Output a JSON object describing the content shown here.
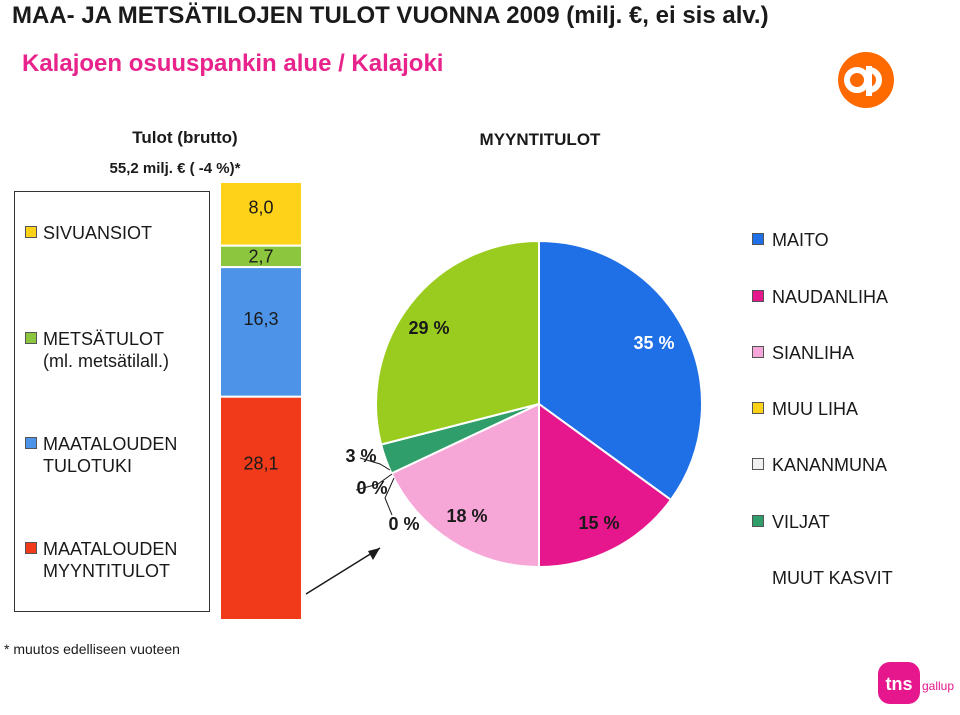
{
  "title": "MAA- JA METSÄTILOJEN TULOT VUONNA 2009 (milj. €, ei sis alv.)",
  "subtitle": "Kalajoen osuuspankin alue / Kalajoki",
  "footnote": "* muutos edelliseen vuoteen",
  "logos": {
    "op": "op",
    "tns": "tns",
    "tns_sub": "gallup"
  },
  "colors": {
    "sivuansiot": "#ffd21a",
    "metsatulot": "#8cc63f",
    "tulotuki": "#4d94e8",
    "myyntitulot": "#f03a1a",
    "maito": "#1f6fe6",
    "naudanliha": "#e6178c",
    "sianliha": "#f7a6d8",
    "muu_liha": "#ffd21a",
    "kananmuna": "#f2f2f2",
    "viljat": "#2f9e6a",
    "muut_kasvit": "#9acc1f",
    "op_orange": "#ff6a00",
    "tns_pink": "#e6178c"
  },
  "chart_data": [
    {
      "type": "bar",
      "title": "Tulot (brutto)",
      "subtitle": "55,2 milj. € ( -4 %)*",
      "stacked": true,
      "series": [
        {
          "name": "MAATALOUDEN MYYNTITULOT",
          "value": 28.1,
          "label": "28,1"
        },
        {
          "name": "MAATALOUDEN TULOTUKI",
          "value": 16.3,
          "label": "16,3"
        },
        {
          "name": "METSÄTULOT (ml. metsätilall.)",
          "value": 2.7,
          "label": "2,7"
        },
        {
          "name": "SIVUANSIOT",
          "value": 8.0,
          "label": "8,0"
        }
      ],
      "legend": [
        {
          "line1": "SIVUANSIOT",
          "line2": "",
          "color_key": "sivuansiot"
        },
        {
          "line1": "METSÄTULOT",
          "line2": "(ml. metsätilall.)",
          "color_key": "metsatulot"
        },
        {
          "line1": "MAATALOUDEN",
          "line2": "TULOTUKI",
          "color_key": "tulotuki"
        },
        {
          "line1": "MAATALOUDEN",
          "line2": "MYYNTITULOT",
          "color_key": "myyntitulot"
        }
      ],
      "legend_placement": "left"
    },
    {
      "type": "pie",
      "title": "MYYNTITULOT",
      "slices": [
        {
          "name": "MAITO",
          "value": 35,
          "label": "35 %",
          "color_key": "maito"
        },
        {
          "name": "NAUDANLIHA",
          "value": 15,
          "label": "15 %",
          "color_key": "naudanliha"
        },
        {
          "name": "SIANLIHA",
          "value": 18,
          "label": "18 %",
          "color_key": "sianliha"
        },
        {
          "name": "MUU LIHA",
          "value": 0,
          "label": "0 %",
          "color_key": "muu_liha"
        },
        {
          "name": "KANANMUNA",
          "value": 0,
          "label": "0 %",
          "color_key": "kananmuna"
        },
        {
          "name": "VILJAT",
          "value": 3,
          "label": "3 %",
          "color_key": "viljat"
        },
        {
          "name": "MUUT KASVIT",
          "value": 29,
          "label": "29 %",
          "color_key": "muut_kasvit"
        }
      ],
      "legend_placement": "right"
    }
  ]
}
